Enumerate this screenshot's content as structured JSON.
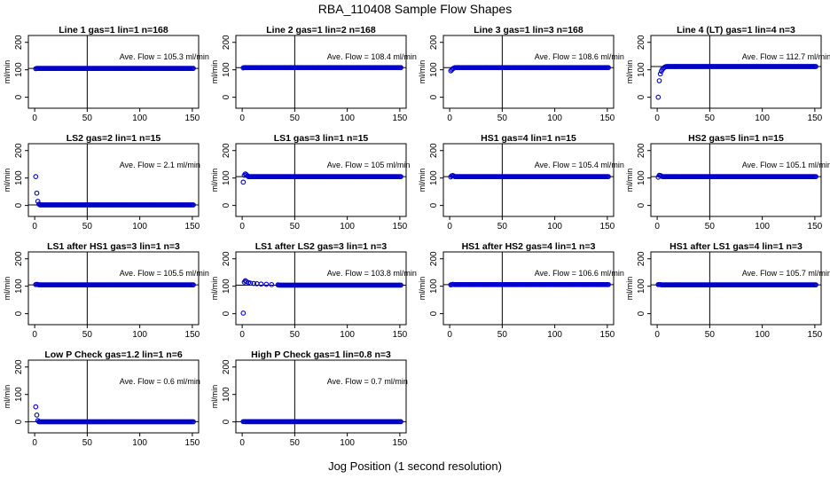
{
  "figure": {
    "title": "RBA_110408  Sample Flow Shapes",
    "xlabel": "Jog Position (1 second resolution)",
    "ylabel": "ml/min"
  },
  "colors": {
    "points": "#0000cc",
    "axis": "#000000"
  },
  "chart_data": [
    {
      "type": "scatter",
      "title": "Line 1 gas=1 lin=1 n=168",
      "annotation": "Ave. Flow = 105.3  ml/min",
      "xlim": [
        0,
        150
      ],
      "ylim": [
        0,
        200
      ],
      "xticks": [
        0,
        50,
        100,
        150
      ],
      "yticks": [
        0,
        100,
        200
      ],
      "hline": 105,
      "vline": 50,
      "start_points": [
        [
          1,
          104
        ],
        [
          2,
          105
        ],
        [
          3,
          105
        ]
      ],
      "plateau": 105,
      "plateau_range": [
        4,
        151
      ]
    },
    {
      "type": "scatter",
      "title": "Line 2 gas=1 lin=2 n=168",
      "annotation": "Ave. Flow = 108.4  ml/min",
      "xlim": [
        0,
        150
      ],
      "ylim": [
        0,
        200
      ],
      "xticks": [
        0,
        50,
        100,
        150
      ],
      "yticks": [
        0,
        100,
        200
      ],
      "hline": 108,
      "vline": 50,
      "start_points": [
        [
          1,
          107
        ],
        [
          2,
          108
        ],
        [
          3,
          108
        ]
      ],
      "plateau": 108,
      "plateau_range": [
        4,
        151
      ]
    },
    {
      "type": "scatter",
      "title": "Line 3 gas=1 lin=3 n=168",
      "annotation": "Ave. Flow = 108.6  ml/min",
      "xlim": [
        0,
        150
      ],
      "ylim": [
        0,
        200
      ],
      "xticks": [
        0,
        50,
        100,
        150
      ],
      "yticks": [
        0,
        100,
        200
      ],
      "hline": 108,
      "vline": 50,
      "start_points": [
        [
          1,
          96
        ],
        [
          2,
          100
        ],
        [
          3,
          104
        ],
        [
          4,
          106
        ]
      ],
      "plateau": 108,
      "plateau_range": [
        5,
        151
      ]
    },
    {
      "type": "scatter",
      "title": "Line 4 (LT) gas=1 lin=4 n=3",
      "annotation": "Ave. Flow = 112.7  ml/min",
      "xlim": [
        0,
        150
      ],
      "ylim": [
        0,
        200
      ],
      "xticks": [
        0,
        50,
        100,
        150
      ],
      "yticks": [
        0,
        100,
        200
      ],
      "hline": 112,
      "vline": 50,
      "start_points": [
        [
          1,
          0
        ],
        [
          2,
          60
        ],
        [
          3,
          85
        ],
        [
          4,
          95
        ],
        [
          5,
          102
        ],
        [
          6,
          106
        ],
        [
          7,
          109
        ],
        [
          8,
          111
        ]
      ],
      "plateau": 112,
      "plateau_range": [
        9,
        151
      ]
    },
    {
      "type": "scatter",
      "title": "LS2 gas=2 lin=1 n=15",
      "annotation": "Ave. Flow = 2.1  ml/min",
      "xlim": [
        0,
        150
      ],
      "ylim": [
        0,
        200
      ],
      "xticks": [
        0,
        50,
        100,
        150
      ],
      "yticks": [
        0,
        100,
        200
      ],
      "hline": 2,
      "vline": 50,
      "start_points": [
        [
          1,
          105
        ],
        [
          2,
          45
        ],
        [
          3,
          15
        ],
        [
          4,
          5
        ]
      ],
      "plateau": 2,
      "plateau_range": [
        5,
        151
      ]
    },
    {
      "type": "scatter",
      "title": "LS1 gas=3 lin=1 n=15",
      "annotation": "Ave. Flow = 105  ml/min",
      "xlim": [
        0,
        150
      ],
      "ylim": [
        0,
        200
      ],
      "xticks": [
        0,
        50,
        100,
        150
      ],
      "yticks": [
        0,
        100,
        200
      ],
      "hline": 105,
      "vline": 50,
      "start_points": [
        [
          1,
          85
        ],
        [
          2,
          110
        ],
        [
          3,
          115
        ],
        [
          4,
          112
        ],
        [
          5,
          108
        ]
      ],
      "plateau": 105,
      "plateau_range": [
        6,
        151
      ]
    },
    {
      "type": "scatter",
      "title": "HS1 gas=4 lin=1 n=15",
      "annotation": "Ave. Flow = 105.4  ml/min",
      "xlim": [
        0,
        150
      ],
      "ylim": [
        0,
        200
      ],
      "xticks": [
        0,
        50,
        100,
        150
      ],
      "yticks": [
        0,
        100,
        200
      ],
      "hline": 105,
      "vline": 50,
      "start_points": [
        [
          1,
          104
        ],
        [
          2,
          108
        ],
        [
          3,
          109
        ],
        [
          4,
          107
        ]
      ],
      "plateau": 105,
      "plateau_range": [
        5,
        151
      ]
    },
    {
      "type": "scatter",
      "title": "HS2 gas=5 lin=1 n=15",
      "annotation": "Ave. Flow = 105.1  ml/min",
      "xlim": [
        0,
        150
      ],
      "ylim": [
        0,
        200
      ],
      "xticks": [
        0,
        50,
        100,
        150
      ],
      "yticks": [
        0,
        100,
        200
      ],
      "hline": 105,
      "vline": 50,
      "start_points": [
        [
          1,
          103
        ],
        [
          2,
          110
        ],
        [
          3,
          109
        ],
        [
          4,
          107
        ]
      ],
      "plateau": 105,
      "plateau_range": [
        5,
        151
      ]
    },
    {
      "type": "scatter",
      "title": "LS1 after HS1 gas=3 lin=1 n=3",
      "annotation": "Ave. Flow = 105.5  ml/min",
      "xlim": [
        0,
        150
      ],
      "ylim": [
        0,
        200
      ],
      "xticks": [
        0,
        50,
        100,
        150
      ],
      "yticks": [
        0,
        100,
        200
      ],
      "hline": 105,
      "vline": 50,
      "start_points": [
        [
          1,
          106
        ],
        [
          2,
          107
        ],
        [
          3,
          106
        ]
      ],
      "plateau": 105,
      "plateau_range": [
        4,
        151
      ]
    },
    {
      "type": "scatter",
      "title": "LS1 after LS2 gas=3 lin=1 n=3",
      "annotation": "Ave. Flow = 103.8  ml/min",
      "xlim": [
        0,
        150
      ],
      "ylim": [
        0,
        200
      ],
      "xticks": [
        0,
        50,
        100,
        150
      ],
      "yticks": [
        0,
        100,
        200
      ],
      "hline": 104,
      "vline": 50,
      "start_points": [
        [
          1,
          2
        ],
        [
          2,
          115
        ],
        [
          3,
          120
        ],
        [
          4,
          117
        ],
        [
          6,
          113
        ],
        [
          8,
          111
        ],
        [
          11,
          110
        ],
        [
          14,
          109
        ],
        [
          18,
          108
        ],
        [
          23,
          107
        ],
        [
          28,
          106
        ],
        [
          34,
          105
        ]
      ],
      "plateau": 104,
      "plateau_range": [
        35,
        151
      ]
    },
    {
      "type": "scatter",
      "title": "HS1 after HS2 gas=4 lin=1 n=3",
      "annotation": "Ave. Flow = 106.6  ml/min",
      "xlim": [
        0,
        150
      ],
      "ylim": [
        0,
        200
      ],
      "xticks": [
        0,
        50,
        100,
        150
      ],
      "yticks": [
        0,
        100,
        200
      ],
      "hline": 106,
      "vline": 50,
      "start_points": [
        [
          1,
          105
        ],
        [
          2,
          106
        ],
        [
          3,
          107
        ]
      ],
      "plateau": 106,
      "plateau_range": [
        4,
        151
      ]
    },
    {
      "type": "scatter",
      "title": "HS1 after LS1 gas=4 lin=1 n=3",
      "annotation": "Ave. Flow = 105.7  ml/min",
      "xlim": [
        0,
        150
      ],
      "ylim": [
        0,
        200
      ],
      "xticks": [
        0,
        50,
        100,
        150
      ],
      "yticks": [
        0,
        100,
        200
      ],
      "hline": 105,
      "vline": 50,
      "start_points": [
        [
          1,
          106
        ],
        [
          2,
          106
        ],
        [
          3,
          106
        ]
      ],
      "plateau": 105,
      "plateau_range": [
        4,
        151
      ]
    },
    {
      "type": "scatter",
      "title": "Low P Check gas=1.2 lin=1 n=6",
      "annotation": "Ave. Flow = 0.6  ml/min",
      "xlim": [
        0,
        150
      ],
      "ylim": [
        0,
        200
      ],
      "xticks": [
        0,
        50,
        100,
        150
      ],
      "yticks": [
        0,
        100,
        200
      ],
      "hline": 0.6,
      "vline": 50,
      "start_points": [
        [
          1,
          55
        ],
        [
          2,
          25
        ],
        [
          3,
          5
        ]
      ],
      "plateau": 0.6,
      "plateau_range": [
        4,
        151
      ]
    },
    {
      "type": "scatter",
      "title": "High P Check gas=1 lin=0.8 n=3",
      "annotation": "Ave. Flow = 0.7  ml/min",
      "xlim": [
        0,
        150
      ],
      "ylim": [
        0,
        200
      ],
      "xticks": [
        0,
        50,
        100,
        150
      ],
      "yticks": [
        0,
        100,
        200
      ],
      "hline": 0.7,
      "vline": 50,
      "start_points": [
        [
          1,
          1
        ],
        [
          2,
          1
        ]
      ],
      "plateau": 0.7,
      "plateau_range": [
        3,
        151
      ]
    }
  ]
}
